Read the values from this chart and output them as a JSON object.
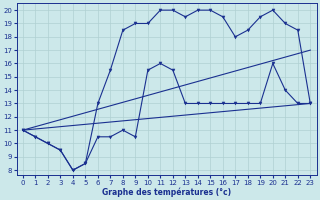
{
  "xlabel": "Graphe des températures (°c)",
  "bg_color": "#cce8ea",
  "grid_color": "#b0d0d2",
  "line_color": "#1a3090",
  "xlim_min": -0.5,
  "xlim_max": 23.5,
  "ylim_min": 7.6,
  "ylim_max": 20.5,
  "xticks": [
    0,
    1,
    2,
    3,
    4,
    5,
    6,
    7,
    8,
    9,
    10,
    11,
    12,
    13,
    14,
    15,
    16,
    17,
    18,
    19,
    20,
    21,
    22,
    23
  ],
  "yticks": [
    8,
    9,
    10,
    11,
    12,
    13,
    14,
    15,
    16,
    17,
    18,
    19,
    20
  ],
  "line1_x": [
    0,
    1,
    2,
    3,
    4,
    5,
    6,
    7,
    8,
    9,
    10,
    11,
    12,
    13,
    14,
    15,
    16,
    17,
    18,
    19,
    20,
    21,
    22,
    23
  ],
  "line1_y": [
    11,
    10.5,
    10,
    9.5,
    8,
    8.5,
    10.5,
    10.5,
    11,
    10.5,
    15.5,
    16,
    15.5,
    13,
    13,
    13,
    13,
    13,
    13,
    13,
    16,
    14,
    13,
    13
  ],
  "line2_x": [
    0,
    1,
    2,
    3,
    4,
    5,
    6,
    7,
    8,
    9,
    10,
    11,
    12,
    13,
    14,
    15,
    16,
    17,
    18,
    19,
    20,
    21,
    22,
    23
  ],
  "line2_y": [
    11,
    10.5,
    10,
    9.5,
    8,
    8.5,
    13,
    15.5,
    18.5,
    19,
    19,
    20,
    20,
    19.5,
    20,
    20,
    19.5,
    18,
    18.5,
    19.5,
    20,
    19,
    18.5,
    13
  ],
  "line3_x": [
    0,
    23
  ],
  "line3_y": [
    11,
    13
  ],
  "line4_x": [
    0,
    23
  ],
  "line4_y": [
    11,
    17
  ]
}
